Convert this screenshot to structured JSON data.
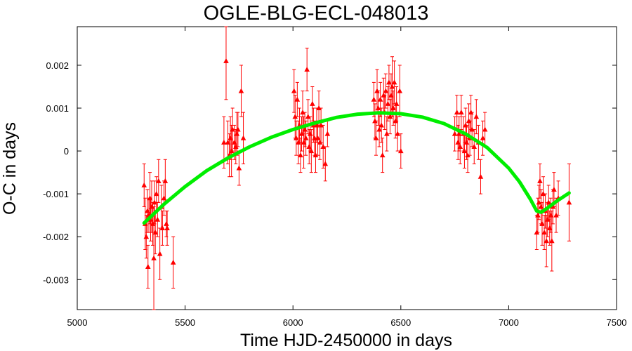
{
  "chart_data": {
    "type": "scatter",
    "title": "OGLE-BLG-ECL-048013",
    "xlabel": "Time HJD-2450000 in days",
    "ylabel": "O-C in days",
    "xlim": [
      5000,
      7500
    ],
    "ylim": [
      -0.0037,
      0.0029
    ],
    "x_ticks": [
      5000,
      5500,
      6000,
      6500,
      7000,
      7500
    ],
    "x_tick_labels": [
      "5000",
      "5500",
      "6000",
      "6500",
      "7000",
      "7500"
    ],
    "y_ticks": [
      0.002,
      0.001,
      0,
      -0.001,
      -0.002,
      -0.003
    ],
    "y_tick_labels": [
      "0.002",
      "0.001",
      "0",
      "-0.001",
      "-0.002",
      "-0.003"
    ],
    "grid": false,
    "legend": "none",
    "colors": {
      "points": "#ff0000",
      "fit": "#00ee00",
      "axes": "#000000"
    },
    "series": [
      {
        "kind": "points-with-errorbars",
        "points": [
          {
            "x": 5310,
            "y": -0.0008,
            "err": 0.0005
          },
          {
            "x": 5315,
            "y": -0.0017,
            "err": 0.0006
          },
          {
            "x": 5320,
            "y": -0.002,
            "err": 0.0005
          },
          {
            "x": 5325,
            "y": -0.0014,
            "err": 0.0005
          },
          {
            "x": 5328,
            "y": -0.0027,
            "err": 0.0005
          },
          {
            "x": 5332,
            "y": -0.0015,
            "err": 0.0004
          },
          {
            "x": 5337,
            "y": -0.0011,
            "err": 0.0006
          },
          {
            "x": 5340,
            "y": -0.0016,
            "err": 0.0005
          },
          {
            "x": 5345,
            "y": -0.0013,
            "err": 0.0006
          },
          {
            "x": 5350,
            "y": -0.0017,
            "err": 0.0005
          },
          {
            "x": 5355,
            "y": -0.0025,
            "err": 0.0012
          },
          {
            "x": 5358,
            "y": -0.0012,
            "err": 0.0005
          },
          {
            "x": 5362,
            "y": -0.0019,
            "err": 0.0005
          },
          {
            "x": 5367,
            "y": -0.001,
            "err": 0.0004
          },
          {
            "x": 5372,
            "y": -0.0016,
            "err": 0.0004
          },
          {
            "x": 5377,
            "y": -0.0007,
            "err": 0.0005
          },
          {
            "x": 5383,
            "y": -0.0024,
            "err": 0.0006
          },
          {
            "x": 5390,
            "y": -0.0013,
            "err": 0.0005
          },
          {
            "x": 5395,
            "y": -0.0018,
            "err": 0.0004
          },
          {
            "x": 5402,
            "y": -0.0011,
            "err": 0.0004
          },
          {
            "x": 5408,
            "y": -0.0007,
            "err": 0.0005
          },
          {
            "x": 5413,
            "y": -0.0017,
            "err": 0.0003
          },
          {
            "x": 5417,
            "y": -0.0018,
            "err": 0.0004
          },
          {
            "x": 5445,
            "y": -0.0026,
            "err": 0.0006
          },
          {
            "x": 5690,
            "y": 0.0021,
            "err": 0.0009
          },
          {
            "x": 5680,
            "y": 0.0002,
            "err": 0.0006
          },
          {
            "x": 5698,
            "y": 0.0002,
            "err": 0.0005
          },
          {
            "x": 5705,
            "y": -0.0001,
            "err": 0.0005
          },
          {
            "x": 5710,
            "y": 0.0003,
            "err": 0.0005
          },
          {
            "x": 5715,
            "y": 0.0,
            "err": 0.0006
          },
          {
            "x": 5720,
            "y": 0.0005,
            "err": 0.0005
          },
          {
            "x": 5728,
            "y": 0.0002,
            "err": 0.0004
          },
          {
            "x": 5735,
            "y": 0.0001,
            "err": 0.0004
          },
          {
            "x": 5740,
            "y": 0.0004,
            "err": 0.0005
          },
          {
            "x": 5745,
            "y": 0.0005,
            "err": 0.0004
          },
          {
            "x": 5750,
            "y": -0.0004,
            "err": 0.0004
          },
          {
            "x": 5760,
            "y": 0.0014,
            "err": 0.0006
          },
          {
            "x": 5770,
            "y": 0.0003,
            "err": 0.0006
          },
          {
            "x": 6005,
            "y": 0.0014,
            "err": 0.0005
          },
          {
            "x": 6010,
            "y": 0.0008,
            "err": 0.0005
          },
          {
            "x": 6015,
            "y": 0.0003,
            "err": 0.0004
          },
          {
            "x": 6020,
            "y": 0.0012,
            "err": 0.0004
          },
          {
            "x": 6025,
            "y": 0.0002,
            "err": 0.0005
          },
          {
            "x": 6030,
            "y": 0.0006,
            "err": 0.0004
          },
          {
            "x": 6035,
            "y": -0.0001,
            "err": 0.0004
          },
          {
            "x": 6040,
            "y": 0.0004,
            "err": 0.0004
          },
          {
            "x": 6045,
            "y": 0.0009,
            "err": 0.0005
          },
          {
            "x": 6050,
            "y": 0.0002,
            "err": 0.0006
          },
          {
            "x": 6055,
            "y": 0.0005,
            "err": 0.0004
          },
          {
            "x": 6060,
            "y": 0.0003,
            "err": 0.0004
          },
          {
            "x": 6065,
            "y": 0.0019,
            "err": 0.0005
          },
          {
            "x": 6070,
            "y": 0.0008,
            "err": 0.0004
          },
          {
            "x": 6075,
            "y": 0.0001,
            "err": 0.0004
          },
          {
            "x": 6080,
            "y": 0.0004,
            "err": 0.0004
          },
          {
            "x": 6085,
            "y": 0.0,
            "err": 0.0005
          },
          {
            "x": 6090,
            "y": 0.0011,
            "err": 0.0004
          },
          {
            "x": 6095,
            "y": 0.0006,
            "err": 0.0004
          },
          {
            "x": 6100,
            "y": 0.0003,
            "err": 0.0004
          },
          {
            "x": 6105,
            "y": -0.0001,
            "err": 0.0004
          },
          {
            "x": 6110,
            "y": 0.0006,
            "err": 0.0004
          },
          {
            "x": 6115,
            "y": 0.0003,
            "err": 0.0004
          },
          {
            "x": 6120,
            "y": 0.001,
            "err": 0.0004
          },
          {
            "x": 6125,
            "y": 0.0002,
            "err": 0.0004
          },
          {
            "x": 6130,
            "y": 0.0006,
            "err": 0.0004
          },
          {
            "x": 6140,
            "y": 0.0001,
            "err": 0.0005
          },
          {
            "x": 6150,
            "y": -0.0003,
            "err": 0.0004
          },
          {
            "x": 6160,
            "y": 0.0004,
            "err": 0.0003
          },
          {
            "x": 6375,
            "y": 0.0012,
            "err": 0.0004
          },
          {
            "x": 6380,
            "y": 0.0007,
            "err": 0.0004
          },
          {
            "x": 6385,
            "y": 0.0003,
            "err": 0.0004
          },
          {
            "x": 6390,
            "y": 0.0014,
            "err": 0.0005
          },
          {
            "x": 6395,
            "y": 0.001,
            "err": 0.0004
          },
          {
            "x": 6400,
            "y": 0.0005,
            "err": 0.0004
          },
          {
            "x": 6405,
            "y": 0.0012,
            "err": 0.0004
          },
          {
            "x": 6410,
            "y": 0.0006,
            "err": 0.0004
          },
          {
            "x": 6415,
            "y": -0.0001,
            "err": 0.0004
          },
          {
            "x": 6420,
            "y": 0.0013,
            "err": 0.0004
          },
          {
            "x": 6425,
            "y": 0.0009,
            "err": 0.0004
          },
          {
            "x": 6430,
            "y": 0.0014,
            "err": 0.0004
          },
          {
            "x": 6435,
            "y": 0.0004,
            "err": 0.0004
          },
          {
            "x": 6440,
            "y": 0.0011,
            "err": 0.0004
          },
          {
            "x": 6445,
            "y": 0.0016,
            "err": 0.0004
          },
          {
            "x": 6450,
            "y": 0.0008,
            "err": 0.0004
          },
          {
            "x": 6455,
            "y": 0.0013,
            "err": 0.0005
          },
          {
            "x": 6460,
            "y": 0.0015,
            "err": 0.0007
          },
          {
            "x": 6465,
            "y": 0.001,
            "err": 0.0004
          },
          {
            "x": 6470,
            "y": 0.0016,
            "err": 0.0005
          },
          {
            "x": 6475,
            "y": 0.0007,
            "err": 0.0004
          },
          {
            "x": 6480,
            "y": 0.0011,
            "err": 0.0004
          },
          {
            "x": 6485,
            "y": 0.0004,
            "err": 0.0004
          },
          {
            "x": 6495,
            "y": 0.0014,
            "err": 0.0006
          },
          {
            "x": 6500,
            "y": 0.0,
            "err": 0.0004
          },
          {
            "x": 6750,
            "y": 0.0004,
            "err": 0.0004
          },
          {
            "x": 6760,
            "y": 0.0009,
            "err": 0.0004
          },
          {
            "x": 6765,
            "y": 0.0002,
            "err": 0.0004
          },
          {
            "x": 6770,
            "y": 0.0004,
            "err": 0.0004
          },
          {
            "x": 6775,
            "y": 0.0001,
            "err": 0.0004
          },
          {
            "x": 6780,
            "y": 0.0009,
            "err": 0.0004
          },
          {
            "x": 6790,
            "y": 0.0004,
            "err": 0.0004
          },
          {
            "x": 6795,
            "y": 0.0,
            "err": 0.0004
          },
          {
            "x": 6800,
            "y": 0.0006,
            "err": 0.0004
          },
          {
            "x": 6805,
            "y": 0.0002,
            "err": 0.0004
          },
          {
            "x": 6810,
            "y": -0.0001,
            "err": 0.0004
          },
          {
            "x": 6815,
            "y": 0.0007,
            "err": 0.0004
          },
          {
            "x": 6820,
            "y": 0.0003,
            "err": 0.0004
          },
          {
            "x": 6825,
            "y": 0.0009,
            "err": 0.0004
          },
          {
            "x": 6830,
            "y": 0.0005,
            "err": 0.0004
          },
          {
            "x": 6840,
            "y": 0.0001,
            "err": 0.0004
          },
          {
            "x": 6850,
            "y": 0.0008,
            "err": 0.0004
          },
          {
            "x": 6860,
            "y": 0.0002,
            "err": 0.0004
          },
          {
            "x": 6870,
            "y": -0.0006,
            "err": 0.0004
          },
          {
            "x": 6880,
            "y": 0.0003,
            "err": 0.0004
          },
          {
            "x": 6890,
            "y": 0.0005,
            "err": 0.0004
          },
          {
            "x": 7130,
            "y": -0.0019,
            "err": 0.0004
          },
          {
            "x": 7135,
            "y": -0.0015,
            "err": 0.0004
          },
          {
            "x": 7140,
            "y": -0.0012,
            "err": 0.0004
          },
          {
            "x": 7145,
            "y": -0.0007,
            "err": 0.0004
          },
          {
            "x": 7150,
            "y": -0.0013,
            "err": 0.0004
          },
          {
            "x": 7155,
            "y": -0.0017,
            "err": 0.0005
          },
          {
            "x": 7160,
            "y": -0.001,
            "err": 0.0004
          },
          {
            "x": 7165,
            "y": -0.0019,
            "err": 0.0004
          },
          {
            "x": 7170,
            "y": -0.0014,
            "err": 0.0004
          },
          {
            "x": 7175,
            "y": -0.0021,
            "err": 0.0006
          },
          {
            "x": 7180,
            "y": -0.0016,
            "err": 0.0004
          },
          {
            "x": 7185,
            "y": -0.0012,
            "err": 0.0004
          },
          {
            "x": 7190,
            "y": -0.0018,
            "err": 0.0004
          },
          {
            "x": 7195,
            "y": -0.0015,
            "err": 0.0004
          },
          {
            "x": 7200,
            "y": -0.0021,
            "err": 0.0007
          },
          {
            "x": 7205,
            "y": -0.0013,
            "err": 0.0004
          },
          {
            "x": 7210,
            "y": -0.0009,
            "err": 0.0004
          },
          {
            "x": 7220,
            "y": -0.0015,
            "err": 0.0004
          },
          {
            "x": 7230,
            "y": -0.0011,
            "err": 0.0004
          },
          {
            "x": 7280,
            "y": -0.0012,
            "err": 0.0009
          }
        ]
      },
      {
        "kind": "fit-curve",
        "x": [
          5310,
          5400,
          5500,
          5600,
          5700,
          5800,
          5900,
          6000,
          6100,
          6200,
          6300,
          6400,
          6500,
          6600,
          6700,
          6800,
          6900,
          7000,
          7050,
          7100,
          7130,
          7150,
          7180,
          7220,
          7280
        ],
        "y": [
          -0.00168,
          -0.00125,
          -0.00083,
          -0.00046,
          -0.00016,
          0.0001,
          0.00032,
          0.0005,
          0.00065,
          0.00078,
          0.00086,
          0.00089,
          0.00087,
          0.00079,
          0.00064,
          0.0004,
          8e-05,
          -0.0004,
          -0.00072,
          -0.00112,
          -0.0014,
          -0.00143,
          -0.00133,
          -0.00118,
          -0.00098
        ]
      }
    ]
  }
}
